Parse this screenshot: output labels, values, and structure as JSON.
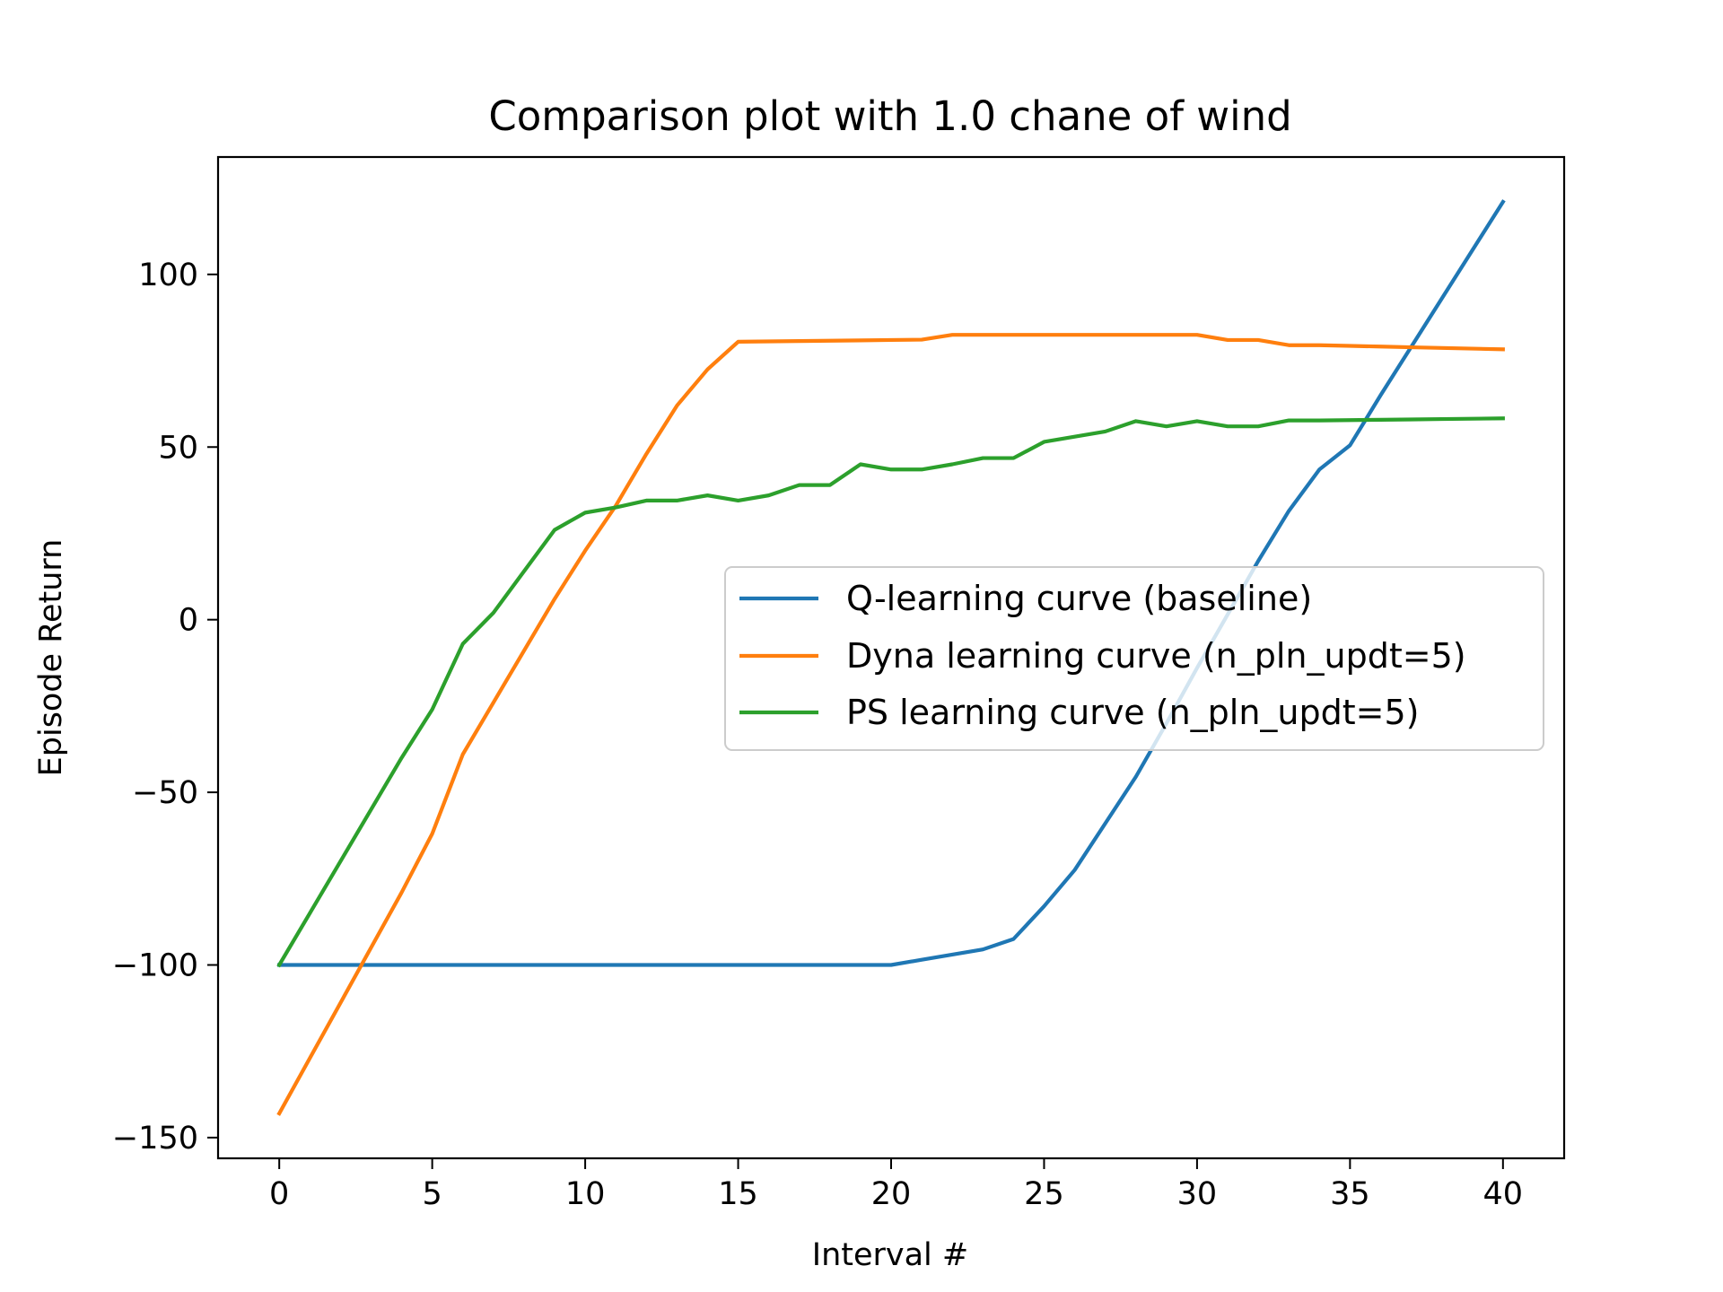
{
  "chart_data": {
    "type": "line",
    "title": "Comparison plot with 1.0 chane of wind",
    "xlabel": "Interval #",
    "ylabel": "Episode Return",
    "xlim": [
      -2,
      42
    ],
    "ylim": [
      -156,
      134
    ],
    "xticks": [
      0,
      5,
      10,
      15,
      20,
      25,
      30,
      35,
      40
    ],
    "xtick_labels": [
      "0",
      "5",
      "10",
      "15",
      "20",
      "25",
      "30",
      "35",
      "40"
    ],
    "yticks": [
      -150,
      -100,
      -50,
      0,
      50,
      100
    ],
    "ytick_labels": [
      "−150",
      "−100",
      "−50",
      "0",
      "50",
      "100"
    ],
    "grid": false,
    "legend_position": "center-right",
    "series": [
      {
        "name": "Q-learning curve (baseline)",
        "color": "#1f77b4",
        "x": [
          0,
          1,
          2,
          3,
          4,
          5,
          6,
          7,
          8,
          9,
          10,
          11,
          12,
          13,
          14,
          15,
          16,
          17,
          18,
          19,
          20,
          21,
          22,
          23,
          24,
          25,
          26,
          27,
          28,
          29,
          30,
          31,
          32,
          33,
          34,
          35,
          36,
          37,
          38,
          39,
          40
        ],
        "y": [
          -100,
          -100,
          -100,
          -100,
          -100,
          -100,
          -100,
          -100,
          -100,
          -100,
          -100,
          -100,
          -100,
          -100,
          -100,
          -100,
          -100,
          -100,
          -100,
          -100,
          -100,
          -98.5,
          -97,
          -95.5,
          -92.5,
          -83,
          -72.5,
          -59,
          -45.5,
          -30,
          -14,
          1.5,
          17,
          31.5,
          43.5,
          50.5,
          65,
          79,
          93,
          107,
          121
        ]
      },
      {
        "name": "Dyna learning curve (n_pln_updt=5)",
        "color": "#ff7f0e",
        "x": [
          0,
          1,
          2,
          3,
          4,
          5,
          6,
          7,
          8,
          9,
          10,
          11,
          12,
          13,
          14,
          15,
          16,
          17,
          18,
          19,
          20,
          21,
          22,
          23,
          24,
          25,
          26,
          27,
          28,
          29,
          30,
          31,
          32,
          33,
          34,
          35,
          36,
          37,
          38,
          39,
          40
        ],
        "y": [
          -143,
          -127,
          -111,
          -95,
          -79,
          -62,
          -39,
          -24,
          -9,
          6,
          20,
          33,
          48,
          62,
          72.5,
          80.5,
          80.6,
          80.7,
          80.8,
          80.9,
          81,
          81.1,
          82.5,
          82.5,
          82.5,
          82.5,
          82.5,
          82.5,
          82.5,
          82.5,
          82.5,
          81,
          81,
          79.5,
          79.5,
          79.3,
          79.1,
          78.9,
          78.7,
          78.5,
          78.3
        ]
      },
      {
        "name": "PS learning curve (n_pln_updt=5)",
        "color": "#2ca02c",
        "x": [
          0,
          1,
          2,
          3,
          4,
          5,
          6,
          7,
          8,
          9,
          10,
          11,
          12,
          13,
          14,
          15,
          16,
          17,
          18,
          19,
          20,
          21,
          22,
          23,
          24,
          25,
          26,
          27,
          28,
          29,
          30,
          31,
          32,
          33,
          34,
          35,
          36,
          37,
          38,
          39,
          40
        ],
        "y": [
          -100,
          -85,
          -70,
          -55,
          -40,
          -26,
          -7,
          2,
          14,
          26,
          31,
          32.5,
          34.5,
          34.5,
          36,
          34.5,
          36,
          39,
          39,
          45,
          43.5,
          43.5,
          45,
          46.8,
          46.8,
          51.5,
          53,
          54.5,
          57.5,
          56,
          57.5,
          56,
          56,
          57.7,
          57.7,
          57.8,
          57.9,
          58,
          58.1,
          58.2,
          58.3
        ]
      }
    ]
  }
}
